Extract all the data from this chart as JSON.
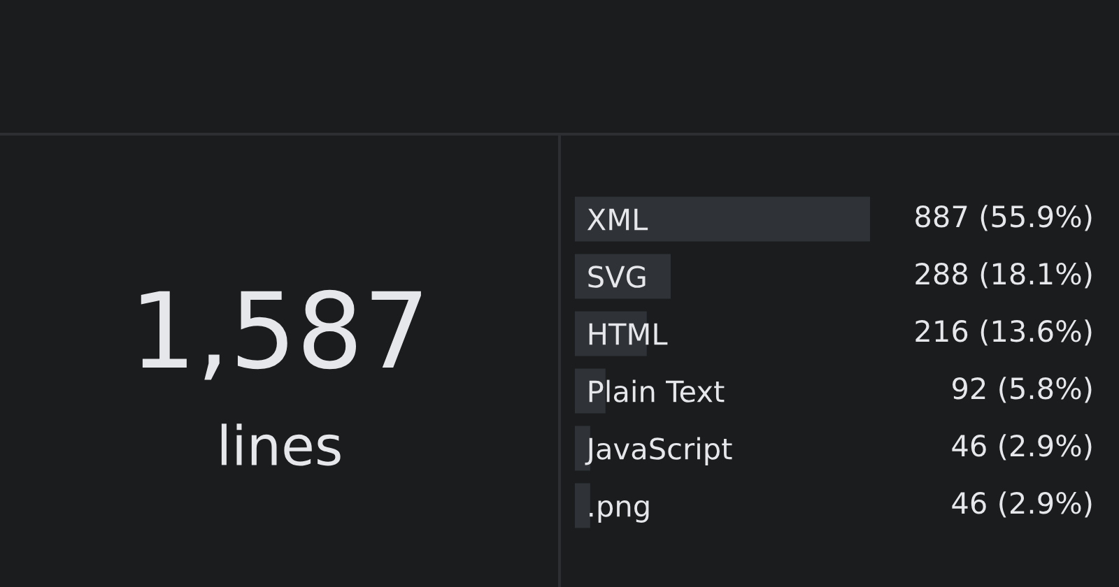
{
  "chart_data": [
    {
      "type": "other",
      "annotations": [
        "1,587",
        "lines"
      ]
    },
    {
      "type": "bar",
      "orientation": "horizontal",
      "categories": [
        "XML",
        "SVG",
        "HTML",
        "Plain Text",
        "JavaScript",
        ".png"
      ],
      "values": [
        887,
        288,
        216,
        92,
        46,
        46
      ],
      "value_labels": [
        "887 (55.9%)",
        "288 (18.1%)",
        "216 (13.6%)",
        "92 (5.8%)",
        "46 (2.9%)",
        "46 (2.9%)"
      ],
      "color": "#2f3236",
      "tick_labels": "y"
    }
  ]
}
